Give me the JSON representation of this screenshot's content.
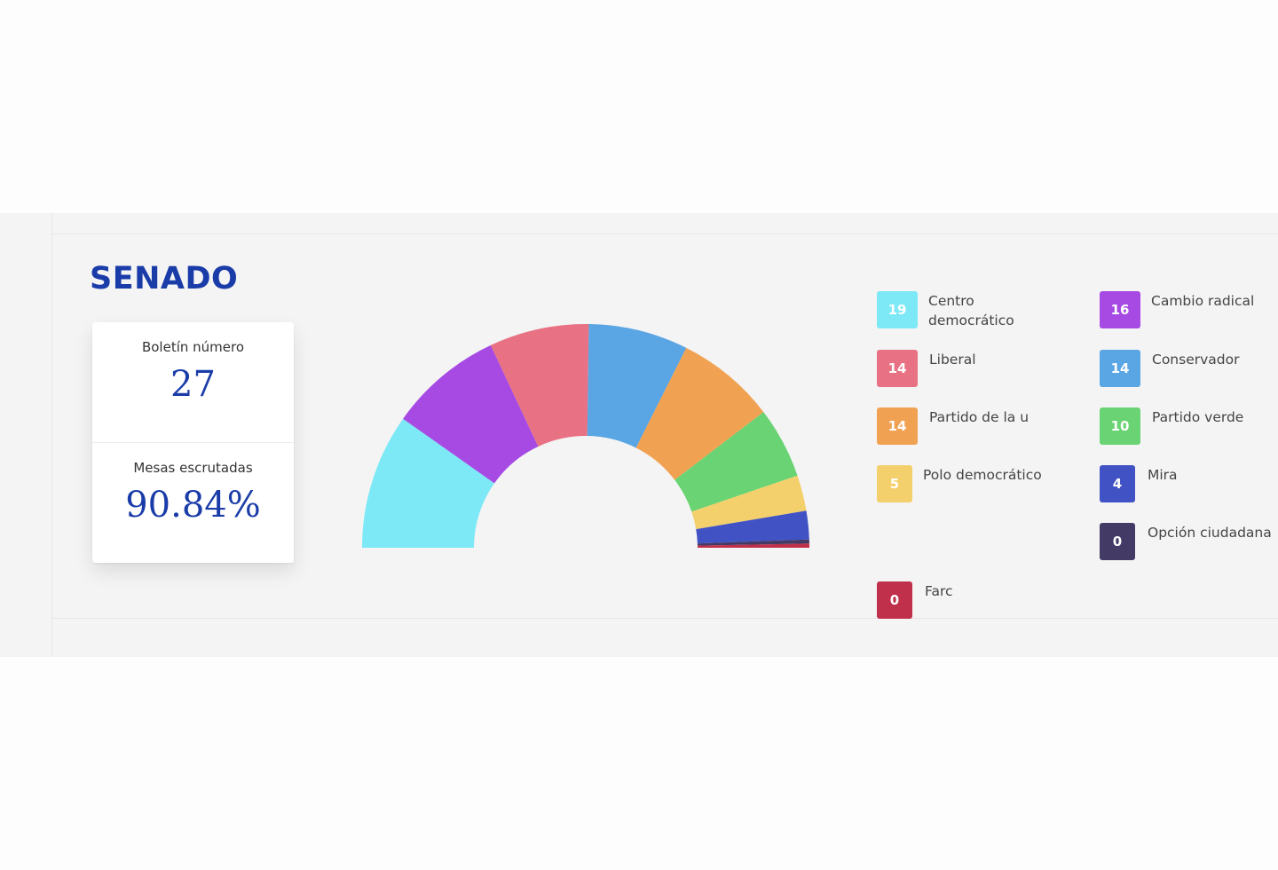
{
  "title": "SENADO",
  "stats": {
    "boletin_label": "Boletín número",
    "boletin_value": "27",
    "mesas_label": "Mesas escrutadas",
    "mesas_value": "90.84%"
  },
  "chart_data": {
    "type": "pie",
    "variant": "semicircle-donut",
    "title": "SENADO",
    "categories": [
      "Centro democrático",
      "Cambio radical",
      "Liberal",
      "Conservador",
      "Partido de la u",
      "Partido verde",
      "Polo democrático",
      "Mira",
      "Opción ciudadana",
      "Farc"
    ],
    "values": [
      19,
      16,
      14,
      14,
      14,
      10,
      5,
      4,
      0,
      0
    ],
    "colors": [
      "#7de9f6",
      "#a64ae3",
      "#e87283",
      "#5aa5e3",
      "#f0a252",
      "#6ad374",
      "#f4d06c",
      "#4152c4",
      "#433a66",
      "#c0304b"
    ],
    "arc_order": [
      "Centro democrático",
      "Cambio radical",
      "Liberal",
      "Conservador",
      "Partido de la u",
      "Partido verde",
      "Polo democrático",
      "Mira",
      "Opción ciudadana",
      "Farc"
    ],
    "legend": "right"
  },
  "legend": [
    {
      "value": "19",
      "label": "Centro democrático",
      "color": "#7de9f6"
    },
    {
      "value": "16",
      "label": "Cambio radical",
      "color": "#a64ae3"
    },
    {
      "value": "14",
      "label": "Liberal",
      "color": "#e87283"
    },
    {
      "value": "14",
      "label": "Conservador",
      "color": "#5aa5e3"
    },
    {
      "value": "14",
      "label": "Partido de la u",
      "color": "#f0a252"
    },
    {
      "value": "10",
      "label": "Partido verde",
      "color": "#6ad374"
    },
    {
      "value": "5",
      "label": "Polo democrático",
      "color": "#f4d06c"
    },
    {
      "value": "4",
      "label": "Mira",
      "color": "#4152c4"
    },
    {
      "value": "0",
      "label": "Opción ciudadana",
      "color": "#433a66"
    },
    {
      "value": "0",
      "label": "Farc",
      "color": "#c0304b"
    }
  ]
}
